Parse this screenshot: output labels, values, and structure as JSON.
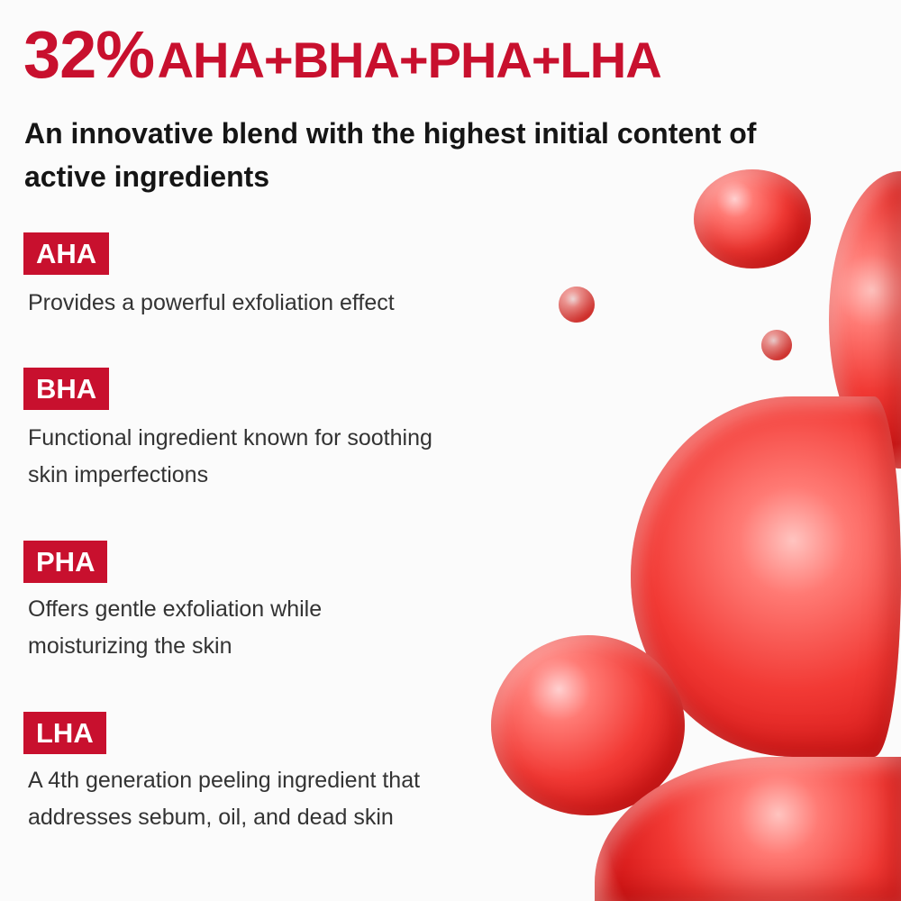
{
  "header": {
    "title_percent": "32%",
    "title_blend": "AHA+BHA+PHA+LHA",
    "subtitle": "An innovative blend with the highest initial content of active ingredients"
  },
  "ingredients": [
    {
      "label": "AHA",
      "description": "Provides a powerful exfoliation effect"
    },
    {
      "label": "BHA",
      "description": "Functional ingredient known for soothing skin imperfections"
    },
    {
      "label": "PHA",
      "description": "Offers gentle exfoliation while moisturizing the skin"
    },
    {
      "label": "LHA",
      "description": "A 4th generation peeling ingredient that addresses sebum, oil, and dead skin"
    }
  ],
  "colors": {
    "accent": "#c8102e",
    "text": "#151515",
    "bubble": "#f23a35"
  }
}
